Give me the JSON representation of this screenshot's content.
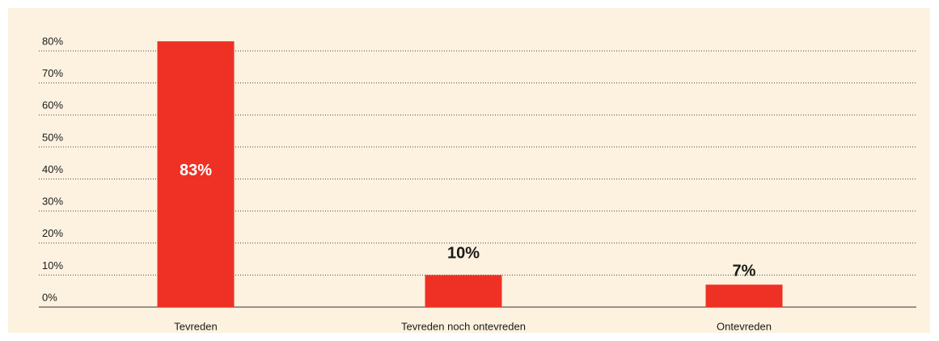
{
  "chart_data": {
    "type": "bar",
    "categories": [
      "Tevreden",
      "Tevreden noch ontevreden",
      "Ontevreden"
    ],
    "values": [
      83,
      10,
      7
    ],
    "value_labels": [
      "83%",
      "10%",
      "7%"
    ],
    "color": "#ee3124",
    "ylim": [
      0,
      80
    ],
    "yticks": [
      {
        "value": 0,
        "label": "0%"
      },
      {
        "value": 10,
        "label": "10%"
      },
      {
        "value": 20,
        "label": "20%"
      },
      {
        "value": 30,
        "label": "30%"
      },
      {
        "value": 40,
        "label": "40%"
      },
      {
        "value": 50,
        "label": "50%"
      },
      {
        "value": 60,
        "label": "60%"
      },
      {
        "value": 70,
        "label": "70%"
      },
      {
        "value": 80,
        "label": "80%"
      }
    ],
    "grid": true
  }
}
